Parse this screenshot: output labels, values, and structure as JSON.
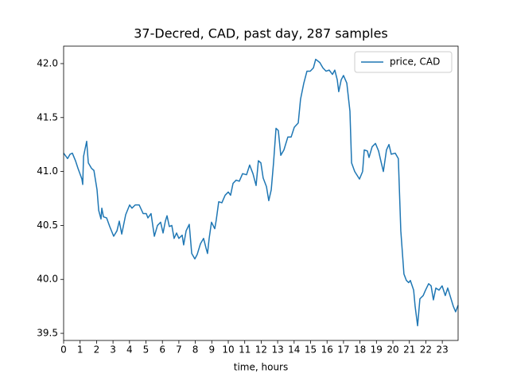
{
  "chart_data": {
    "type": "line",
    "title": "37-Decred, CAD, past day, 287 samples",
    "xlabel": "time, hours",
    "x": [
      0,
      0.24,
      0.39,
      0.53,
      0.72,
      0.87,
      1.11,
      1.16,
      1.21,
      1.4,
      1.5,
      1.69,
      1.84,
      2.03,
      2.13,
      2.27,
      2.32,
      2.42,
      2.61,
      2.8,
      3.04,
      3.24,
      3.38,
      3.53,
      3.77,
      4.01,
      4.15,
      4.35,
      4.59,
      4.83,
      5.02,
      5.12,
      5.31,
      5.51,
      5.7,
      5.89,
      6.04,
      6.18,
      6.28,
      6.42,
      6.57,
      6.71,
      6.86,
      7.0,
      7.2,
      7.29,
      7.44,
      7.63,
      7.78,
      7.97,
      8.11,
      8.31,
      8.5,
      8.65,
      8.74,
      8.84,
      8.98,
      9.18,
      9.27,
      9.42,
      9.61,
      9.81,
      10.0,
      10.14,
      10.29,
      10.48,
      10.67,
      10.87,
      11.11,
      11.3,
      11.5,
      11.69,
      11.83,
      11.98,
      12.12,
      12.32,
      12.46,
      12.61,
      12.75,
      12.9,
      13.04,
      13.19,
      13.38,
      13.62,
      13.82,
      14.01,
      14.25,
      14.39,
      14.59,
      14.78,
      14.98,
      15.17,
      15.31,
      15.56,
      15.75,
      15.94,
      16.13,
      16.33,
      16.47,
      16.62,
      16.71,
      16.86,
      17.0,
      17.2,
      17.39,
      17.49,
      17.68,
      17.97,
      18.16,
      18.26,
      18.45,
      18.55,
      18.74,
      18.94,
      19.13,
      19.28,
      19.42,
      19.61,
      19.76,
      19.9,
      20.14,
      20.33,
      20.48,
      20.67,
      20.82,
      20.96,
      21.06,
      21.26,
      21.35,
      21.5,
      21.64,
      21.84,
      21.98,
      22.17,
      22.32,
      22.46,
      22.61,
      22.8,
      22.99,
      23.18,
      23.33,
      23.47,
      23.67,
      23.81,
      23.96
    ],
    "series": [
      {
        "name": "price, CAD",
        "color": "#1f77b4",
        "values": [
          41.17,
          41.12,
          41.16,
          41.17,
          41.1,
          41.03,
          40.93,
          40.88,
          41.14,
          41.28,
          41.08,
          41.03,
          41.01,
          40.83,
          40.64,
          40.56,
          40.66,
          40.58,
          40.57,
          40.49,
          40.4,
          40.45,
          40.54,
          40.42,
          40.6,
          40.69,
          40.66,
          40.69,
          40.69,
          40.61,
          40.61,
          40.57,
          40.61,
          40.4,
          40.5,
          40.53,
          40.43,
          40.54,
          40.59,
          40.49,
          40.5,
          40.38,
          40.43,
          40.38,
          40.41,
          40.32,
          40.45,
          40.51,
          40.24,
          40.19,
          40.23,
          40.33,
          40.38,
          40.29,
          40.24,
          40.38,
          40.53,
          40.47,
          40.55,
          40.72,
          40.71,
          40.78,
          40.81,
          40.78,
          40.89,
          40.92,
          40.91,
          40.98,
          40.97,
          41.06,
          40.98,
          40.87,
          41.1,
          41.08,
          40.94,
          40.86,
          40.73,
          40.83,
          41.08,
          41.4,
          41.38,
          41.15,
          41.2,
          41.32,
          41.32,
          41.41,
          41.45,
          41.67,
          41.82,
          41.93,
          41.93,
          41.96,
          42.04,
          42.01,
          41.96,
          41.93,
          41.94,
          41.9,
          41.94,
          41.85,
          41.74,
          41.85,
          41.89,
          41.82,
          41.56,
          41.08,
          41.0,
          40.93,
          41.0,
          41.2,
          41.19,
          41.13,
          41.23,
          41.26,
          41.19,
          41.09,
          41.0,
          41.2,
          41.25,
          41.16,
          41.17,
          41.12,
          40.45,
          40.05,
          39.99,
          39.97,
          39.99,
          39.9,
          39.75,
          39.57,
          39.82,
          39.85,
          39.9,
          39.96,
          39.94,
          39.81,
          39.92,
          39.9,
          39.94,
          39.85,
          39.92,
          39.85,
          39.75,
          39.7,
          39.76
        ]
      }
    ],
    "xlim": [
      0,
      23.96
    ],
    "xticks": [
      0,
      1,
      2,
      3,
      4,
      5,
      6,
      7,
      8,
      9,
      10,
      11,
      12,
      13,
      14,
      15,
      16,
      17,
      18,
      19,
      20,
      21,
      22,
      23
    ],
    "ylim": [
      39.434,
      42.162
    ],
    "yticks": [
      39.5,
      {
        "value": 40,
        "label": "40.0"
      },
      40.5,
      {
        "value": 41,
        "label": "41.0"
      },
      41.5,
      {
        "value": 42,
        "label": "42.0"
      }
    ],
    "legend": "upper right"
  }
}
